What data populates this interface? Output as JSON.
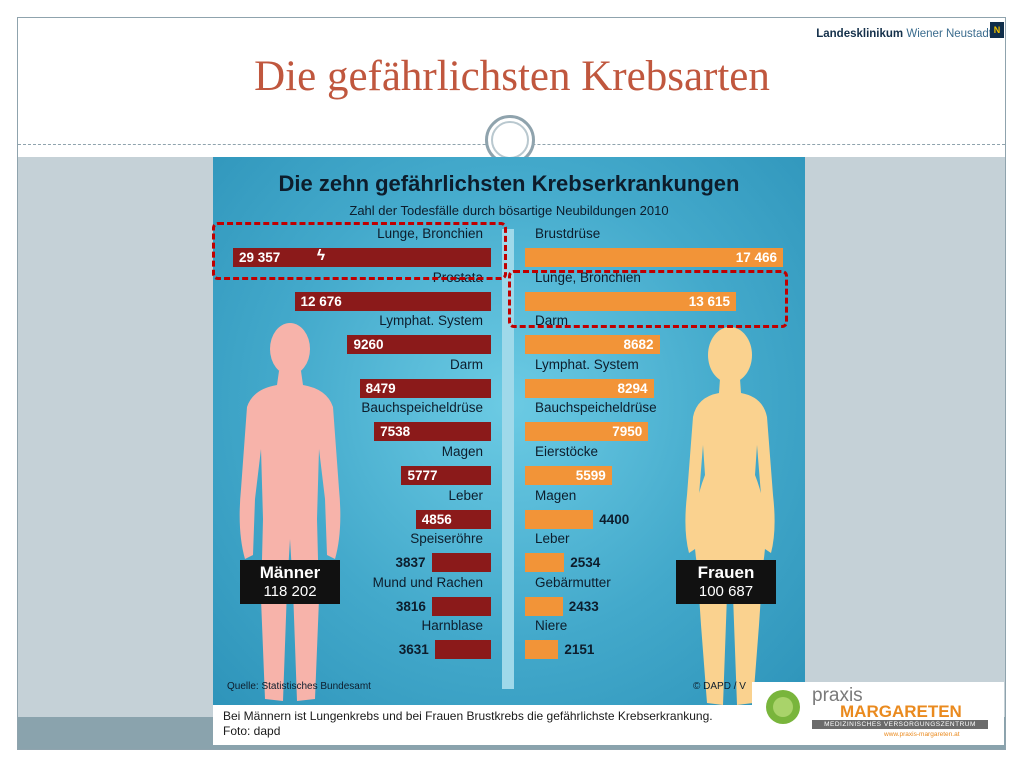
{
  "slide": {
    "title": "Die gefährlichsten Krebsarten",
    "brand": {
      "name_bold": "Landesklinikum",
      "name_light": "Wiener Neustadt",
      "logo_letter": "N"
    }
  },
  "chart_data": {
    "type": "bar",
    "title": "Die zehn gefährlichsten Krebserkrankungen",
    "subtitle": "Zahl der Todesfälle durch bösartige Neubildungen 2010",
    "source": "Quelle: Statistisches Bundesamt",
    "copyright": "© DAPD / V",
    "series": [
      {
        "name": "Männer",
        "total": "118 202",
        "categories": [
          "Lunge, Bronchien",
          "Prostata",
          "Lymphat. System",
          "Darm",
          "Bauchspeicheldrüse",
          "Magen",
          "Leber",
          "Speiseröhre",
          "Mund und Rachen",
          "Harnblase"
        ],
        "values": [
          29357,
          12676,
          9260,
          8479,
          7538,
          5777,
          4856,
          3837,
          3816,
          3631
        ],
        "value_labels": [
          "29 357",
          "12 676",
          "9260",
          "8479",
          "7538",
          "5777",
          "4856",
          "3837",
          "3816",
          "3631"
        ],
        "color": "#8b1a1a"
      },
      {
        "name": "Frauen",
        "total": "100 687",
        "categories": [
          "Brustdrüse",
          "Lunge, Bronchien",
          "Darm",
          "Lymphat. System",
          "Bauchspeicheldrüse",
          "Eierstöcke",
          "Magen",
          "Leber",
          "Gebärmutter",
          "Niere"
        ],
        "values": [
          17466,
          13615,
          8682,
          8294,
          7950,
          5599,
          4400,
          2534,
          2433,
          2151
        ],
        "value_labels": [
          "17 466",
          "13 615",
          "8682",
          "8294",
          "7950",
          "5599",
          "4400",
          "2534",
          "2433",
          "2151"
        ],
        "color": "#f29438"
      }
    ],
    "axis_break_on": "Lunge, Bronchien",
    "highlighted": [
      "Männer: Lunge, Bronchien",
      "Frauen: Lunge, Bronchien"
    ]
  },
  "caption": {
    "line1": "Bei Männern ist Lungenkrebs und bei Frauen Brustkrebs die gefährlichste Krebserkrankung.",
    "line2": "Foto: dapd"
  },
  "praxis": {
    "word": "praxis",
    "name": "MARGARETEN",
    "strip": "MEDIZINISCHES VERSORGUNGSZENTRUM",
    "url": "www.praxis-margareten.at"
  },
  "colors": {
    "title": "#c0573e",
    "male_bar": "#8b1a1a",
    "female_bar": "#f29438",
    "highlight": "#c00000",
    "graphic_bg": "#4fb3d3"
  }
}
